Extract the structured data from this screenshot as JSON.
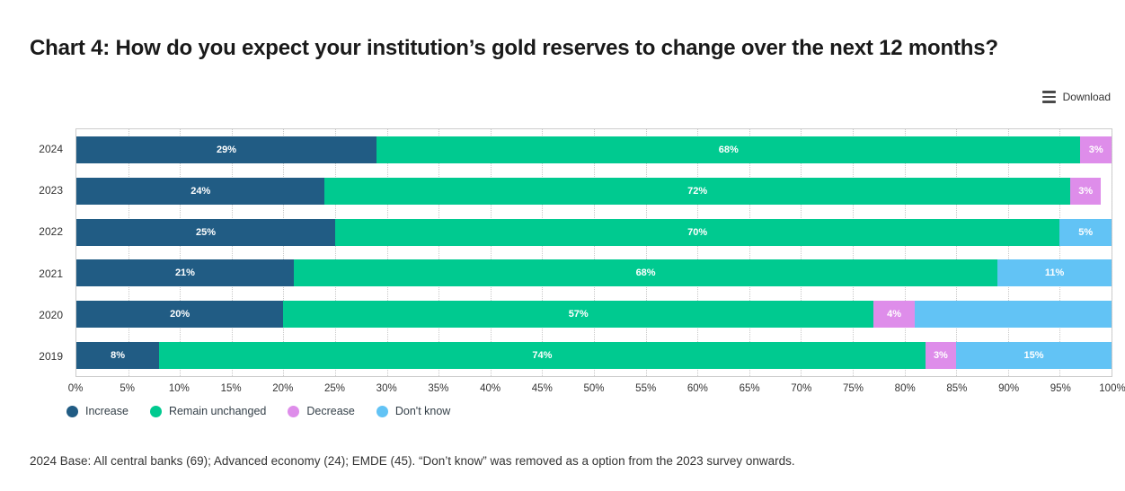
{
  "toolbar": {
    "download_label": "Download"
  },
  "footer": {
    "note": "2024 Base: All central banks (69); Advanced economy (24); EMDE (45). “Don’t know” was removed as a option from the 2023 survey onwards."
  },
  "chart_data": {
    "type": "bar",
    "orientation": "horizontal",
    "stacked": true,
    "title": "Chart 4: How do you expect your institution’s gold reserves to change over the next 12 months?",
    "categories": [
      "2024",
      "2023",
      "2022",
      "2021",
      "2020",
      "2019"
    ],
    "series": [
      {
        "name": "Increase",
        "color": "#215C84",
        "values": [
          29,
          24,
          25,
          21,
          20,
          8
        ],
        "labels": [
          "29%",
          "24%",
          "25%",
          "21%",
          "20%",
          "8%"
        ]
      },
      {
        "name": "Remain unchanged",
        "color": "#00CA90",
        "values": [
          68,
          72,
          70,
          68,
          57,
          74
        ],
        "labels": [
          "68%",
          "72%",
          "70%",
          "68%",
          "57%",
          "74%"
        ]
      },
      {
        "name": "Decrease",
        "color": "#DE8DEA",
        "values": [
          3,
          3,
          0,
          0,
          4,
          3
        ],
        "labels": [
          "3%",
          "3%",
          "",
          "",
          "4%",
          "3%"
        ]
      },
      {
        "name": "Don't know",
        "color": "#62C3F5",
        "values": [
          0,
          0,
          5,
          11,
          19,
          15
        ],
        "labels": [
          "",
          "",
          "5%",
          "11%",
          "",
          "15%"
        ]
      }
    ],
    "xlim": [
      0,
      100
    ],
    "x_ticks": [
      "0%",
      "5%",
      "10%",
      "15%",
      "20%",
      "25%",
      "30%",
      "35%",
      "40%",
      "45%",
      "50%",
      "55%",
      "60%",
      "65%",
      "70%",
      "75%",
      "80%",
      "85%",
      "90%",
      "95%",
      "100%"
    ],
    "grid": "vertical-dotted",
    "legend_position": "bottom-left",
    "bar_label_color": "#ffffff"
  }
}
